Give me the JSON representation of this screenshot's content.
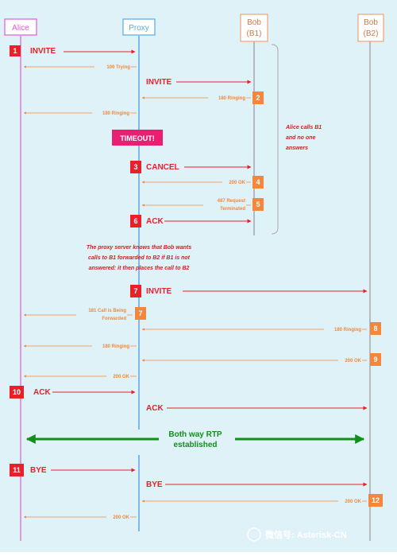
{
  "participants": {
    "alice": "Alice",
    "proxy": "Proxy",
    "bob1": [
      "Bob",
      "(B1)"
    ],
    "bob2": [
      "Bob",
      "(B2)"
    ]
  },
  "messages": {
    "m1": "INVITE",
    "m1b": "100 Trying",
    "m2": "INVITE",
    "m2r": "180 Ringing",
    "m2r_fwd": "180 Ringing",
    "timeout": "TIMEOUT!",
    "m3": "CANCEL",
    "m4": "200 OK",
    "m5": [
      "487 Request",
      "Terminated"
    ],
    "m6": "ACK",
    "m7": "INVITE",
    "m7r": [
      "181 Call is Being",
      "Forwarded"
    ],
    "m8": "180 Ringing",
    "m8f": "180 Ringing",
    "m9": "200 OK",
    "m9f": "200 OK",
    "m10": "ACK",
    "m10f": "ACK",
    "rtp": [
      "Both way RTP",
      "established"
    ],
    "m11": "BYE",
    "m11f": "BYE",
    "m12": "200 OK",
    "m12f": "200 OK"
  },
  "badges": [
    "1",
    "2",
    "3",
    "4",
    "5",
    "6",
    "7",
    "8",
    "9",
    "10",
    "11",
    "12"
  ],
  "notes": {
    "alice_calls": [
      "Alice calls B1",
      "and no one",
      "answers"
    ],
    "proxy_knows": [
      "The proxy server knows that Bob wants",
      "calls to B1 forwarded to B2 if B1 is not",
      "answered: it then places the call to B2"
    ]
  },
  "watermark": "微信号: Asterisk-CN",
  "colors": {
    "alice": "#e15ad7",
    "proxy": "#5aa8e6",
    "bob": "#f3a178",
    "red": "#e8202a",
    "orange": "#f5873c",
    "green": "#138f1c",
    "background": "#dff2f8"
  }
}
